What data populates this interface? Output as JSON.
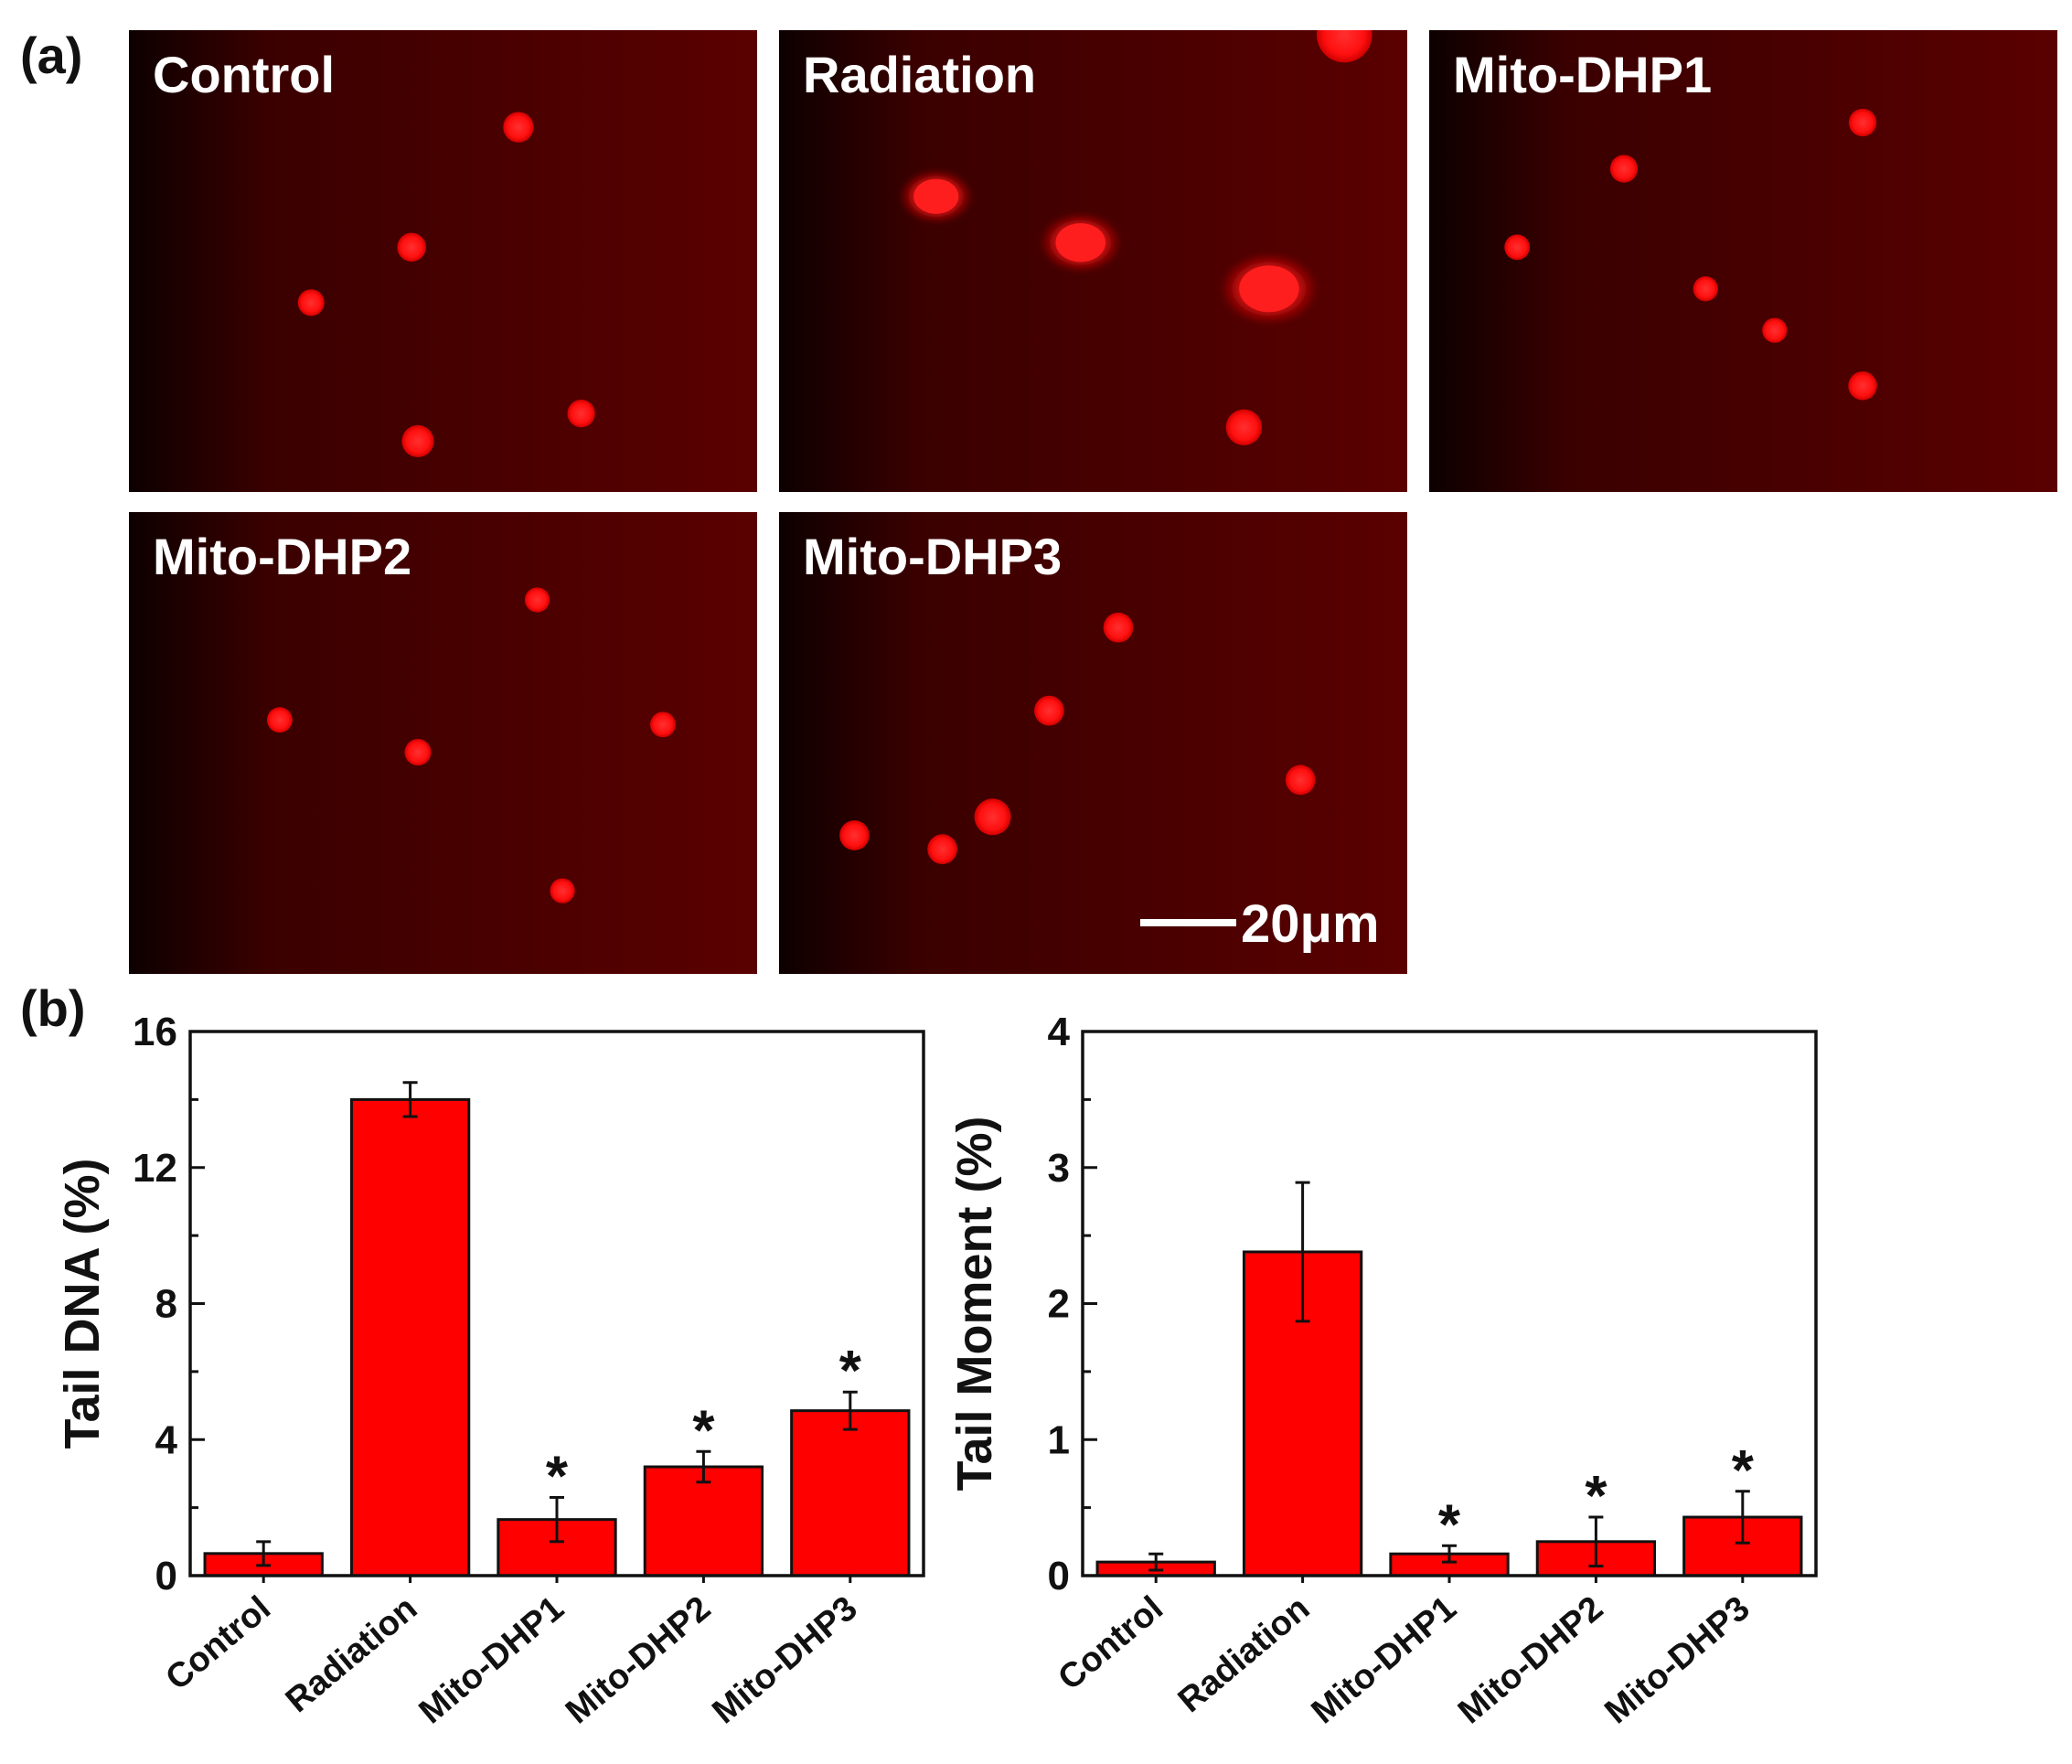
{
  "panel_a": {
    "label": "(a)",
    "images": [
      {
        "title": "Control",
        "row": 0,
        "col": 0,
        "cells": [
          [
            0.62,
            0.21,
            0.055
          ],
          [
            0.45,
            0.47,
            0.052
          ],
          [
            0.29,
            0.59,
            0.048
          ],
          [
            0.72,
            0.83,
            0.05
          ],
          [
            0.46,
            0.89,
            0.058
          ]
        ]
      },
      {
        "title": "Radiation",
        "row": 0,
        "col": 1,
        "damaged": true,
        "cells": [
          [
            0.25,
            0.36,
            0.09
          ],
          [
            0.48,
            0.46,
            0.1
          ],
          [
            0.78,
            0.56,
            0.12
          ],
          [
            0.74,
            0.86,
            0.065
          ],
          [
            0.9,
            0.01,
            0.1
          ]
        ]
      },
      {
        "title": "Mito-DHP1",
        "row": 0,
        "col": 2,
        "cells": [
          [
            0.69,
            0.2,
            0.05
          ],
          [
            0.31,
            0.3,
            0.05
          ],
          [
            0.14,
            0.47,
            0.046
          ],
          [
            0.44,
            0.56,
            0.045
          ],
          [
            0.55,
            0.65,
            0.045
          ],
          [
            0.69,
            0.77,
            0.052
          ]
        ]
      },
      {
        "title": "Mito-DHP2",
        "row": 1,
        "col": 0,
        "cells": [
          [
            0.65,
            0.19,
            0.045
          ],
          [
            0.24,
            0.45,
            0.046
          ],
          [
            0.46,
            0.52,
            0.048
          ],
          [
            0.85,
            0.46,
            0.046
          ],
          [
            0.69,
            0.82,
            0.045
          ]
        ]
      },
      {
        "title": "Mito-DHP3",
        "row": 1,
        "col": 1,
        "cells": [
          [
            0.54,
            0.25,
            0.054
          ],
          [
            0.43,
            0.43,
            0.054
          ],
          [
            0.83,
            0.58,
            0.054
          ],
          [
            0.34,
            0.66,
            0.066
          ],
          [
            0.12,
            0.7,
            0.054
          ],
          [
            0.26,
            0.73,
            0.054
          ]
        ]
      }
    ],
    "scale_bar": "20μm"
  },
  "panel_b": {
    "label": "(b)"
  },
  "chart_data": [
    {
      "type": "bar",
      "title": "",
      "ylabel": "Tail DNA (%)",
      "xlabel": "",
      "categories": [
        "Control",
        "Radiation",
        "Mito-DHP1",
        "Mito-DHP2",
        "Mito-DHP3"
      ],
      "values": [
        0.65,
        14.0,
        1.65,
        3.2,
        4.85
      ],
      "errors": [
        0.35,
        0.5,
        0.65,
        0.45,
        0.55
      ],
      "significance": [
        "",
        "",
        "*",
        "*",
        "*"
      ],
      "ylim": [
        0,
        16
      ],
      "yticks": [
        0,
        4,
        8,
        12,
        16
      ],
      "bar_color": "#ff0000",
      "grid": false
    },
    {
      "type": "bar",
      "title": "",
      "ylabel": "Tail Moment (%)",
      "xlabel": "",
      "categories": [
        "Control",
        "Radiation",
        "Mito-DHP1",
        "Mito-DHP2",
        "Mito-DHP3"
      ],
      "values": [
        0.1,
        2.38,
        0.16,
        0.25,
        0.43
      ],
      "errors": [
        0.06,
        0.51,
        0.06,
        0.18,
        0.19
      ],
      "significance": [
        "",
        "",
        "*",
        "*",
        "*"
      ],
      "ylim": [
        0,
        4
      ],
      "yticks": [
        0,
        1,
        2,
        3,
        4
      ],
      "bar_color": "#ff0000",
      "grid": false
    }
  ]
}
